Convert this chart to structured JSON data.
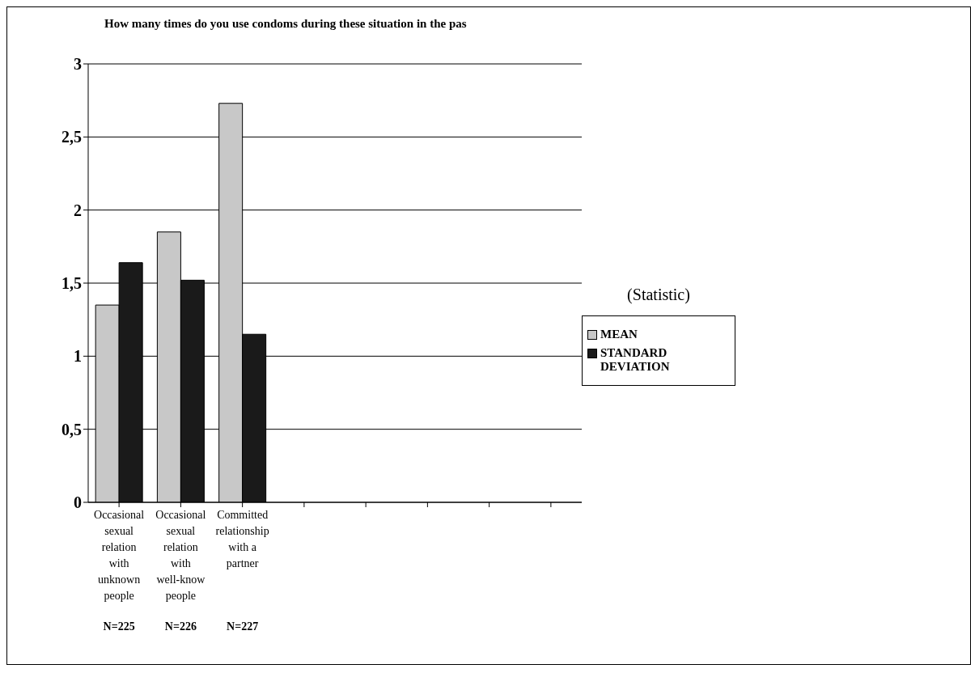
{
  "chart_data": {
    "type": "bar",
    "title": "How many times do you use condoms during these situation in the pas",
    "categories": [
      "Occasional sexual relation with unknown people",
      "Occasional sexual relation with well-know people",
      "Committed relationship with a partner",
      null,
      null,
      null,
      null,
      null
    ],
    "series": [
      {
        "name": "MEAN",
        "color": "#c8c8c8",
        "values": [
          1.35,
          1.85,
          2.73,
          null,
          null,
          null,
          null,
          null
        ]
      },
      {
        "name": "STANDARD DEVIATION",
        "color": "#1a1a1a",
        "values": [
          1.64,
          1.52,
          1.15,
          null,
          null,
          null,
          null,
          null
        ]
      }
    ],
    "ylim": [
      0,
      3
    ],
    "yticks": [
      0,
      {
        "value": 0.5,
        "label": "0,5"
      },
      1,
      {
        "value": 1.5,
        "label": "1,5"
      },
      2,
      {
        "value": 2.5,
        "label": "2,5"
      },
      3
    ],
    "grid": "y",
    "legend": "right",
    "legend_title": "(Statistic)",
    "annotations": [
      "N=225",
      "N=226",
      "N=227"
    ]
  }
}
